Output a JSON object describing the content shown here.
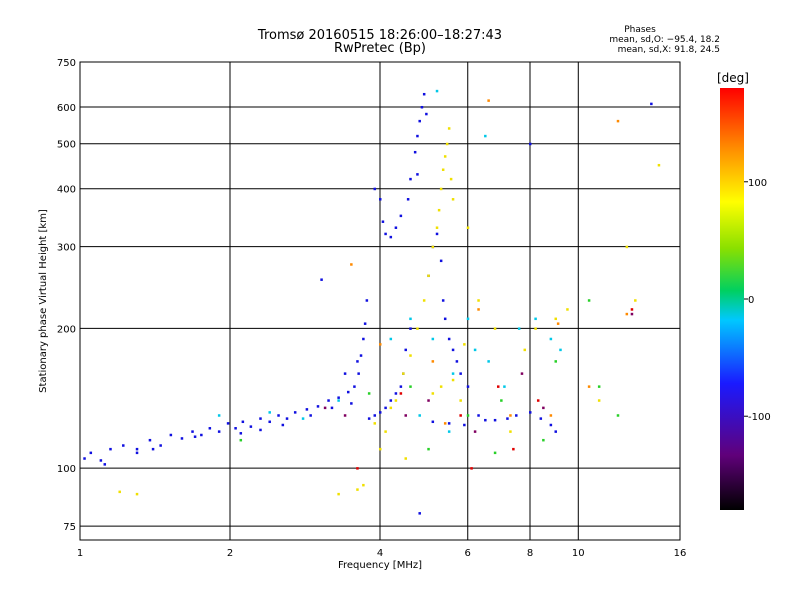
{
  "header": {
    "title": "Tromsø 20160515 18:26:00–18:27:43",
    "subtitle": "RwPretec (Bp)"
  },
  "stats": {
    "heading": "Phases",
    "line_o": "mean, sd,O: −95.4, 18.2",
    "line_x": "mean, sd,X:  91.8, 24.5"
  },
  "chart_data": {
    "type": "scatter",
    "xlabel": "Frequency [MHz]",
    "ylabel": "Stationary phase Virtual Height [km]",
    "xscale": "log",
    "yscale": "log",
    "xlim": [
      1,
      16
    ],
    "ylim": [
      70,
      750
    ],
    "x_ticks": [
      1,
      2,
      4,
      6,
      8,
      10,
      16
    ],
    "x_tick_labels": [
      "1",
      "2",
      "4",
      "6",
      "8",
      "10",
      "16"
    ],
    "y_ticks": [
      75,
      100,
      200,
      300,
      400,
      500,
      600,
      750
    ],
    "y_tick_labels": [
      "75",
      "100",
      "200",
      "300",
      "400",
      "500",
      "600",
      "750"
    ],
    "grid": true,
    "colorbar": {
      "label": "[deg]",
      "range": [
        -180,
        180
      ],
      "ticks": [
        -100,
        0,
        100
      ],
      "tick_labels": [
        "-100",
        "0",
        "100"
      ]
    },
    "series": [
      {
        "color": "#1010e0",
        "points": [
          [
            1.02,
            105
          ],
          [
            1.05,
            108
          ],
          [
            1.1,
            104
          ],
          [
            1.15,
            110
          ],
          [
            1.22,
            112
          ],
          [
            1.3,
            108
          ],
          [
            1.38,
            115
          ],
          [
            1.45,
            112
          ],
          [
            1.52,
            118
          ],
          [
            1.6,
            116
          ],
          [
            1.68,
            120
          ],
          [
            1.75,
            118
          ],
          [
            1.82,
            122
          ],
          [
            1.9,
            120
          ],
          [
            1.98,
            125
          ],
          [
            2.05,
            122
          ],
          [
            2.12,
            126
          ],
          [
            2.2,
            123
          ],
          [
            2.3,
            128
          ],
          [
            2.4,
            126
          ],
          [
            2.5,
            130
          ],
          [
            2.6,
            128
          ],
          [
            2.7,
            132
          ],
          [
            2.85,
            134
          ],
          [
            3.0,
            136
          ],
          [
            3.15,
            140
          ],
          [
            3.3,
            142
          ],
          [
            3.45,
            146
          ],
          [
            3.55,
            150
          ],
          [
            3.62,
            160
          ],
          [
            3.66,
            175
          ],
          [
            3.7,
            190
          ],
          [
            3.73,
            205
          ],
          [
            3.76,
            230
          ],
          [
            3.9,
            400
          ],
          [
            4.0,
            380
          ],
          [
            4.05,
            340
          ],
          [
            4.1,
            320
          ],
          [
            4.2,
            315
          ],
          [
            4.3,
            330
          ],
          [
            4.4,
            350
          ],
          [
            4.55,
            380
          ],
          [
            4.6,
            420
          ],
          [
            4.7,
            480
          ],
          [
            4.75,
            520
          ],
          [
            4.8,
            560
          ],
          [
            4.85,
            600
          ],
          [
            4.9,
            640
          ],
          [
            4.95,
            580
          ],
          [
            4.75,
            430
          ],
          [
            4.6,
            200
          ],
          [
            4.5,
            180
          ],
          [
            4.45,
            160
          ],
          [
            4.4,
            150
          ],
          [
            4.3,
            145
          ],
          [
            4.2,
            140
          ],
          [
            4.1,
            135
          ],
          [
            4.0,
            132
          ],
          [
            3.9,
            130
          ],
          [
            5.0,
            260
          ],
          [
            5.1,
            300
          ],
          [
            5.2,
            320
          ],
          [
            5.3,
            280
          ],
          [
            5.35,
            230
          ],
          [
            5.4,
            210
          ],
          [
            5.5,
            190
          ],
          [
            5.6,
            180
          ],
          [
            5.7,
            170
          ],
          [
            5.8,
            160
          ],
          [
            6.0,
            150
          ],
          [
            6.3,
            130
          ],
          [
            6.5,
            127
          ],
          [
            6.8,
            127
          ],
          [
            7.2,
            128
          ],
          [
            7.5,
            130
          ],
          [
            8.0,
            132
          ],
          [
            8.4,
            128
          ],
          [
            8.8,
            124
          ],
          [
            9.0,
            120
          ],
          [
            14.0,
            610
          ],
          [
            8.0,
            500
          ],
          [
            1.3,
            110
          ],
          [
            1.7,
            117
          ],
          [
            2.1,
            119
          ],
          [
            2.55,
            124
          ],
          [
            3.2,
            135
          ],
          [
            3.5,
            138
          ],
          [
            3.8,
            128
          ],
          [
            5.1,
            126
          ],
          [
            5.5,
            125
          ],
          [
            5.9,
            124
          ],
          [
            1.12,
            102
          ],
          [
            1.4,
            110
          ],
          [
            2.3,
            121
          ],
          [
            2.9,
            130
          ],
          [
            3.05,
            255
          ],
          [
            4.8,
            80
          ],
          [
            3.4,
            160
          ],
          [
            3.6,
            170
          ]
        ]
      },
      {
        "color": "#00c8e8",
        "points": [
          [
            1.9,
            130
          ],
          [
            2.4,
            132
          ],
          [
            2.8,
            128
          ],
          [
            3.3,
            140
          ],
          [
            4.2,
            190
          ],
          [
            4.6,
            210
          ],
          [
            5.1,
            190
          ],
          [
            5.6,
            160
          ],
          [
            6.0,
            210
          ],
          [
            6.2,
            180
          ],
          [
            6.6,
            170
          ],
          [
            7.1,
            150
          ],
          [
            7.6,
            200
          ],
          [
            8.2,
            210
          ],
          [
            8.8,
            190
          ],
          [
            9.2,
            180
          ],
          [
            5.2,
            650
          ],
          [
            6.5,
            520
          ],
          [
            5.5,
            120
          ],
          [
            4.8,
            130
          ]
        ]
      },
      {
        "color": "#28d028",
        "points": [
          [
            2.1,
            115
          ],
          [
            3.8,
            145
          ],
          [
            4.6,
            150
          ],
          [
            5.0,
            110
          ],
          [
            6.0,
            130
          ],
          [
            7.0,
            140
          ],
          [
            9.0,
            170
          ],
          [
            10.5,
            230
          ],
          [
            11.0,
            150
          ],
          [
            12.0,
            130
          ],
          [
            8.5,
            115
          ],
          [
            6.8,
            108
          ]
        ]
      },
      {
        "color": "#f0e000",
        "points": [
          [
            1.2,
            89
          ],
          [
            1.3,
            88
          ],
          [
            3.6,
            90
          ],
          [
            4.1,
            120
          ],
          [
            4.3,
            140
          ],
          [
            4.45,
            160
          ],
          [
            4.6,
            175
          ],
          [
            4.75,
            200
          ],
          [
            4.9,
            230
          ],
          [
            5.0,
            260
          ],
          [
            5.1,
            300
          ],
          [
            5.2,
            330
          ],
          [
            5.25,
            360
          ],
          [
            5.3,
            400
          ],
          [
            5.35,
            440
          ],
          [
            5.4,
            470
          ],
          [
            5.45,
            500
          ],
          [
            5.5,
            540
          ],
          [
            5.55,
            420
          ],
          [
            5.6,
            380
          ],
          [
            5.1,
            145
          ],
          [
            5.3,
            150
          ],
          [
            5.6,
            155
          ],
          [
            5.8,
            140
          ],
          [
            6.0,
            330
          ],
          [
            6.3,
            230
          ],
          [
            6.8,
            200
          ],
          [
            7.3,
            120
          ],
          [
            7.8,
            180
          ],
          [
            8.2,
            200
          ],
          [
            9.0,
            210
          ],
          [
            9.5,
            220
          ],
          [
            12.5,
            300
          ],
          [
            13.0,
            230
          ],
          [
            14.5,
            450
          ],
          [
            11.0,
            140
          ],
          [
            4.0,
            110
          ],
          [
            4.5,
            105
          ],
          [
            3.7,
            92
          ],
          [
            5.9,
            185
          ],
          [
            3.9,
            125
          ],
          [
            4.2,
            135
          ],
          [
            3.3,
            88
          ]
        ]
      },
      {
        "color": "#ff8a00",
        "points": [
          [
            3.5,
            275
          ],
          [
            4.0,
            185
          ],
          [
            5.1,
            170
          ],
          [
            6.3,
            220
          ],
          [
            6.6,
            620
          ],
          [
            7.3,
            130
          ],
          [
            8.8,
            130
          ],
          [
            9.1,
            205
          ],
          [
            12.0,
            560
          ],
          [
            12.5,
            215
          ],
          [
            10.5,
            150
          ],
          [
            5.4,
            125
          ]
        ]
      },
      {
        "color": "#e00000",
        "points": [
          [
            3.6,
            100
          ],
          [
            4.4,
            145
          ],
          [
            6.1,
            100
          ],
          [
            6.9,
            150
          ],
          [
            8.3,
            140
          ],
          [
            12.8,
            220
          ],
          [
            7.4,
            110
          ],
          [
            5.8,
            130
          ]
        ]
      },
      {
        "color": "#800060",
        "points": [
          [
            3.1,
            135
          ],
          [
            3.4,
            130
          ],
          [
            4.5,
            130
          ],
          [
            5.0,
            140
          ],
          [
            7.7,
            160
          ],
          [
            8.5,
            135
          ],
          [
            12.8,
            215
          ],
          [
            6.2,
            120
          ]
        ]
      }
    ]
  }
}
